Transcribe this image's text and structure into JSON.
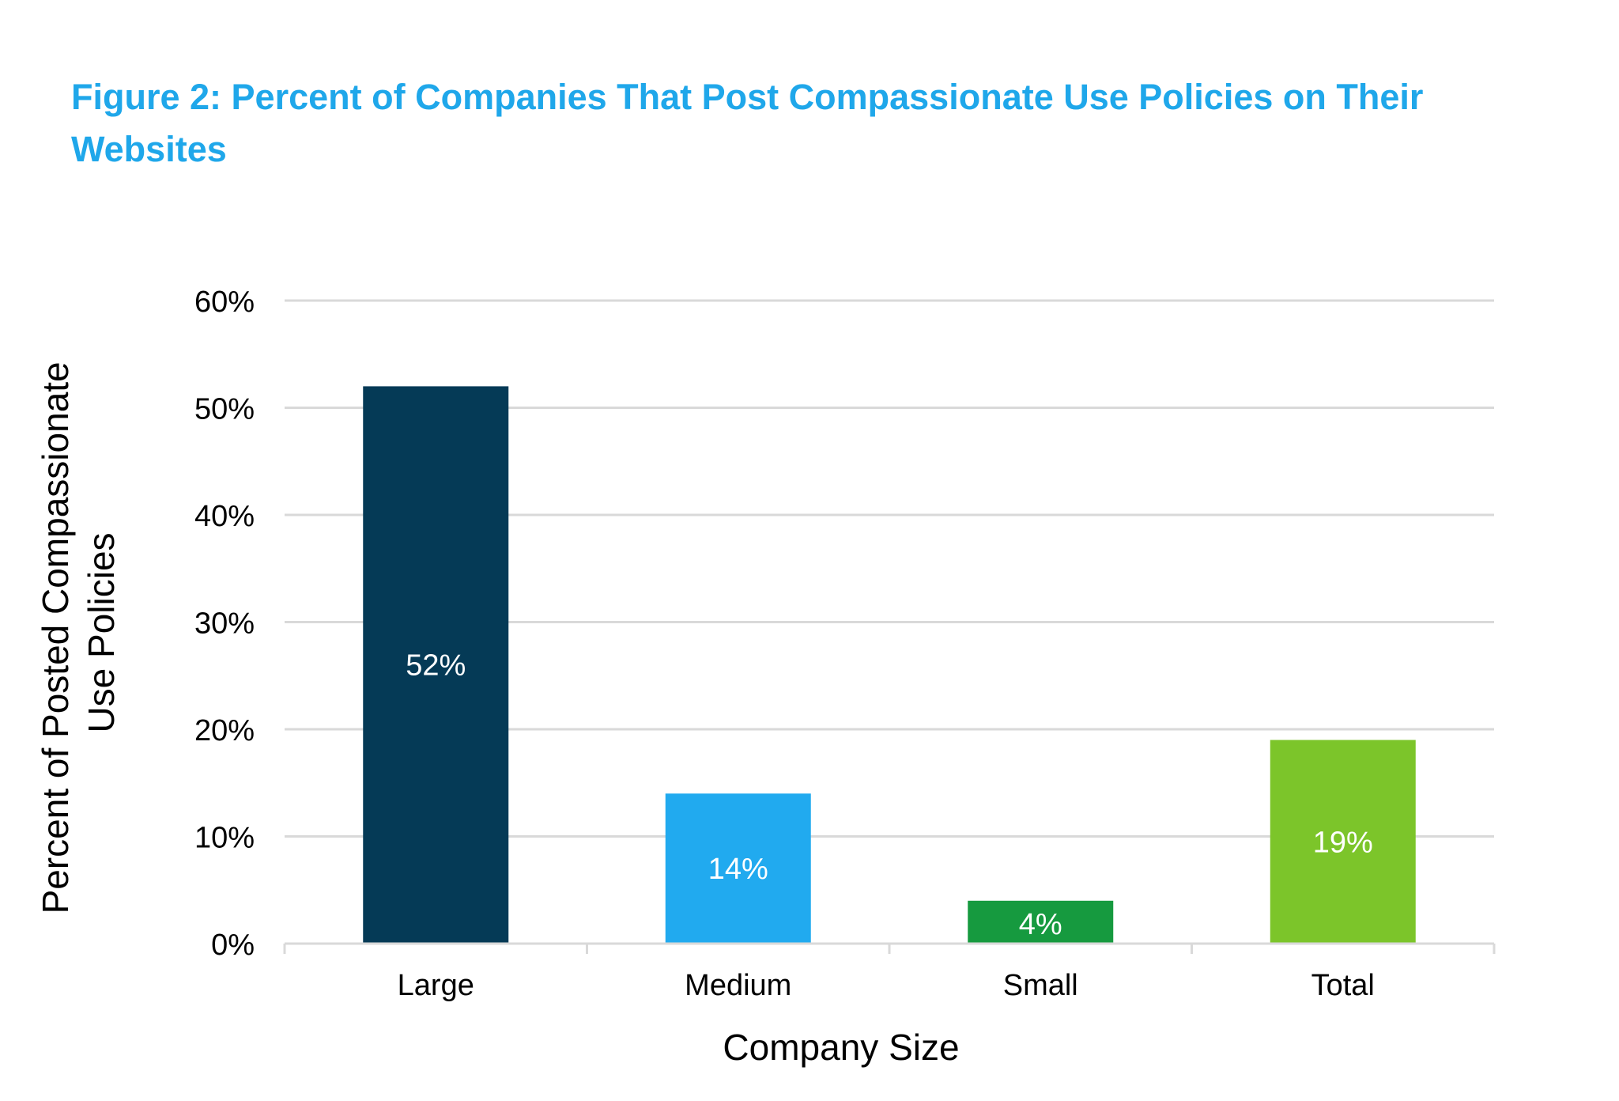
{
  "figure": {
    "title": "Figure 2: Percent of Companies That Post Compassionate Use Policies on Their Websites"
  },
  "chart_data": {
    "type": "bar",
    "categories": [
      "Large",
      "Medium",
      "Small",
      "Total"
    ],
    "values": [
      52,
      14,
      4,
      19
    ],
    "data_labels": [
      "52%",
      "14%",
      "4%",
      "19%"
    ],
    "bar_colors": [
      "#053a56",
      "#21aaef",
      "#169a3f",
      "#7cc52a"
    ],
    "title": "Figure 2: Percent of Companies That Post Compassionate Use Policies on Their Websites",
    "xlabel": "Company Size",
    "ylabel_lines": [
      "Percent of Posted Compassionate",
      "Use Policies"
    ],
    "ylim": [
      0,
      60
    ],
    "yticks": [
      0,
      10,
      20,
      30,
      40,
      50,
      60
    ],
    "ytick_labels": [
      "0%",
      "10%",
      "20%",
      "30%",
      "40%",
      "50%",
      "60%"
    ],
    "grid": true,
    "legend": "none"
  }
}
